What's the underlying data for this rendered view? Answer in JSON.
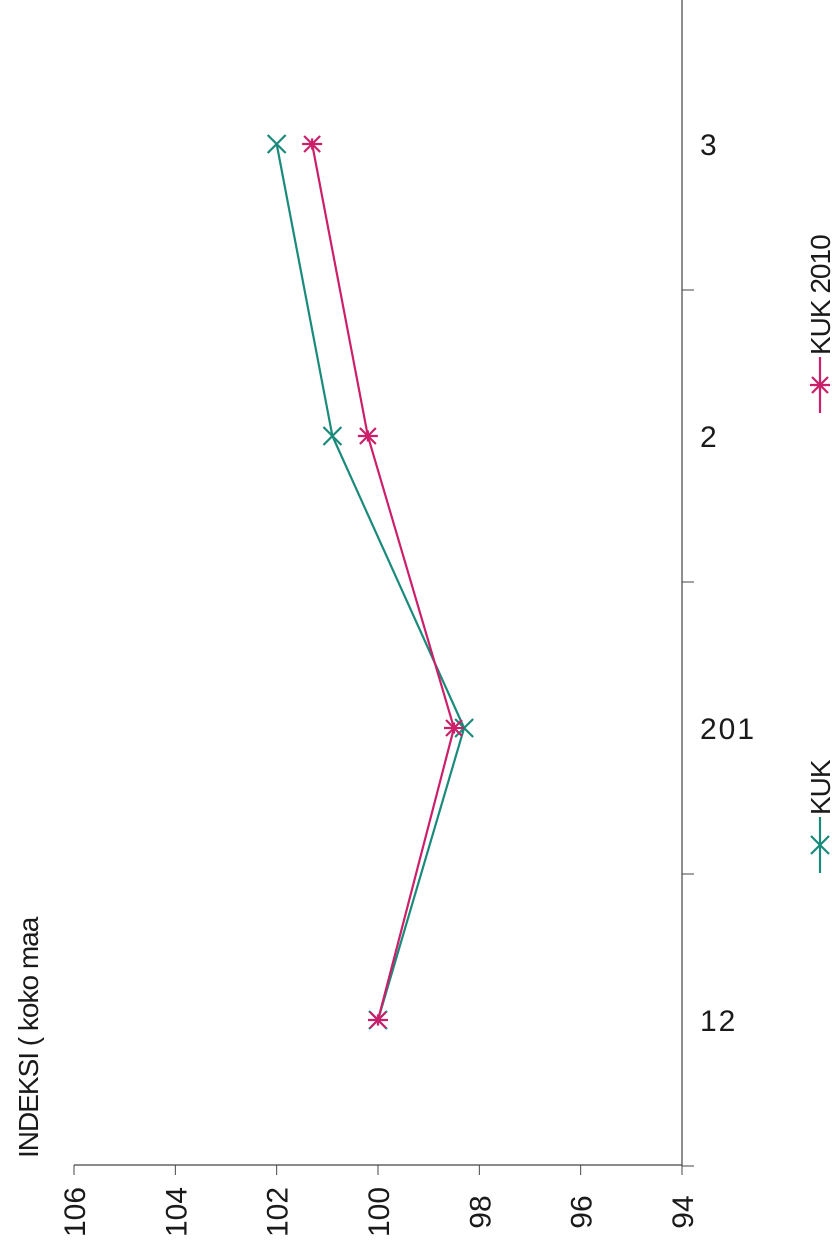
{
  "chart_data": {
    "type": "line",
    "title": "INDEKSI ( koko maa",
    "orientation": "rotated-90-counterclockwise",
    "categories": [
      "12",
      "201",
      "2",
      "3"
    ],
    "series": [
      {
        "name": "KUK",
        "values": [
          100.0,
          98.3,
          100.9,
          102.0
        ],
        "color": "#1a8a7a",
        "marker": "x"
      },
      {
        "name": "KUK 2010",
        "values": [
          100.0,
          98.5,
          100.2,
          101.3
        ],
        "color": "#cc1f6a",
        "marker": "asterisk"
      }
    ],
    "yticks": [
      "94",
      "96",
      "98",
      "100",
      "102",
      "104",
      "106"
    ],
    "ylim": [
      94,
      106
    ],
    "grid": false,
    "legend_position": "right"
  }
}
